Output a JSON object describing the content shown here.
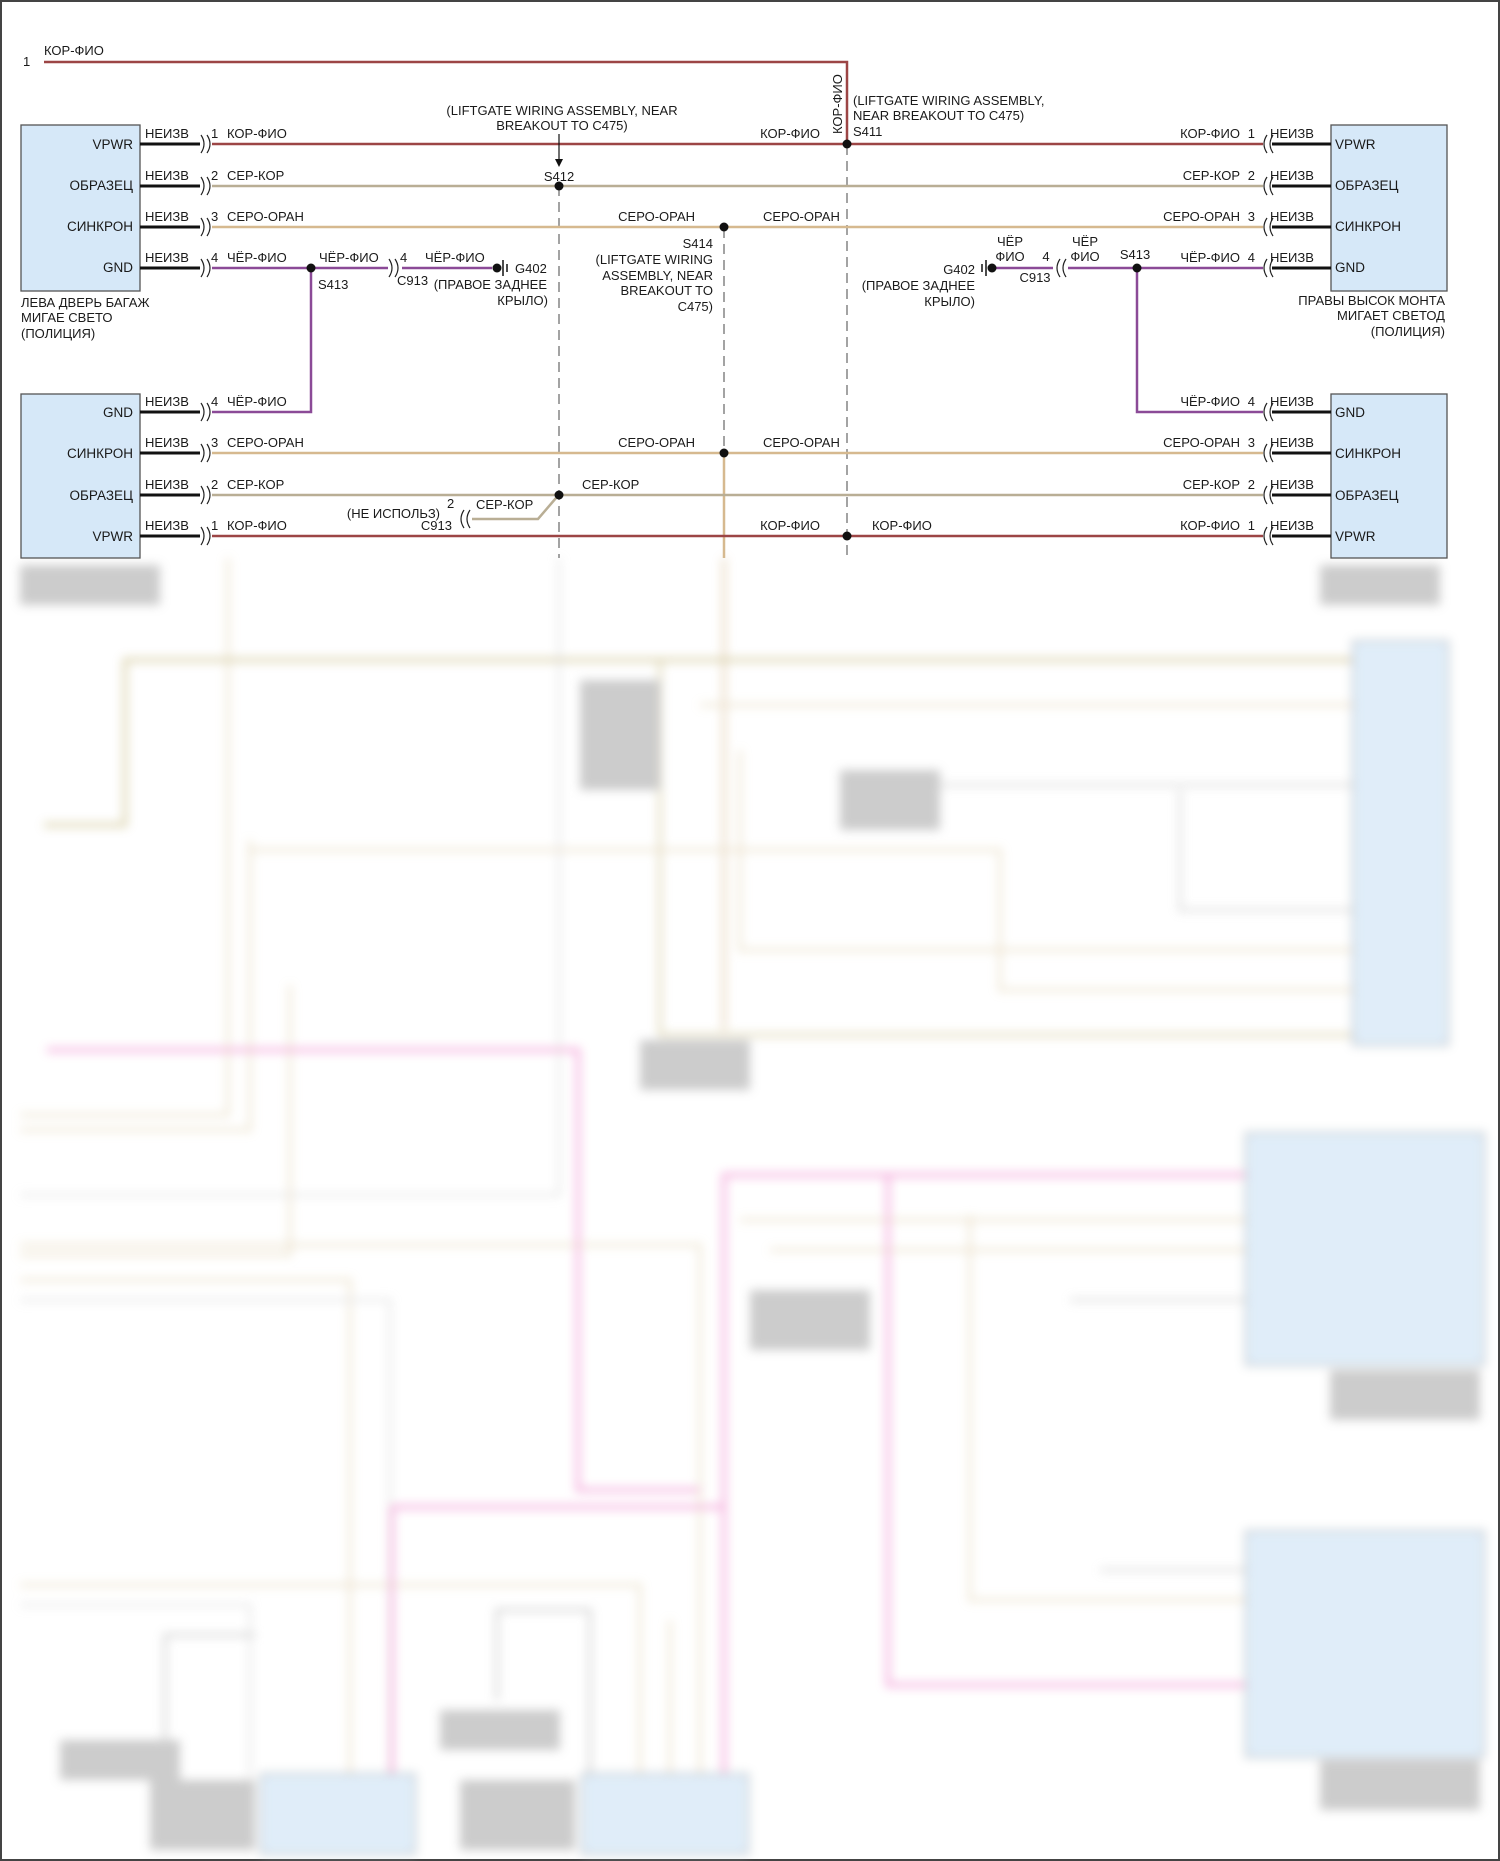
{
  "colors": {
    "kor_fio": "#9c4545",
    "ser_kor": "#b9ae95",
    "sero_oran": "#d6b98f",
    "cher_fio": "#8b4a97",
    "harness_pink": "#f08ccf",
    "module_fill": "#d6e8f8"
  },
  "top_wire": {
    "pin": "1",
    "label": "КОР-ФИО"
  },
  "pins": {
    "vpwr": "VPWR",
    "obrazec": "ОБРАЗЕЦ",
    "sinkron": "СИНКРОН",
    "gnd": "GND"
  },
  "pin_numbers": {
    "p1": "1",
    "p2": "2",
    "p3": "3",
    "p4": "4"
  },
  "unknown": "НЕИЗВ",
  "wires": {
    "kor_fio": "КОР-ФИО",
    "ser_kor": "СЕР-КОР",
    "sero_oran": "СЕРО-ОРАН",
    "cher_fio": "ЧЁР-ФИО",
    "cher": "ЧЁР",
    "fio": "ФИО"
  },
  "modules": {
    "left_upper": [
      "ЛЕВА ДВЕРЬ БАГАЖ",
      "МИГАЕ СВЕТО",
      "(ПОЛИЦИЯ)"
    ],
    "right_upper": [
      "ПРАВЫ ВЫСОК МОНТА",
      "МИГАЕТ СВЕТОД",
      "(ПОЛИЦИЯ)"
    ]
  },
  "splices": {
    "s411": "S411",
    "s412": "S412",
    "s413": "S413",
    "s414": "S414",
    "s411_note": [
      "(LIFTGATE WIRING ASSEMBLY,",
      "NEAR BREAKOUT TO C475)"
    ],
    "s412_note": [
      "(LIFTGATE WIRING ASSEMBLY, NEAR",
      "BREAKOUT TO C475)"
    ],
    "s414_note": [
      "(LIFTGATE WIRING",
      "ASSEMBLY, NEAR",
      "BREAKOUT TO",
      "C475)"
    ]
  },
  "connectors": {
    "c913": "C913",
    "not_used": "(НЕ ИСПОЛЬЗ)"
  },
  "grounds": {
    "g402": "G402",
    "location": [
      "(ПРАВОЕ ЗАДНЕЕ",
      "КРЫЛО)"
    ]
  }
}
